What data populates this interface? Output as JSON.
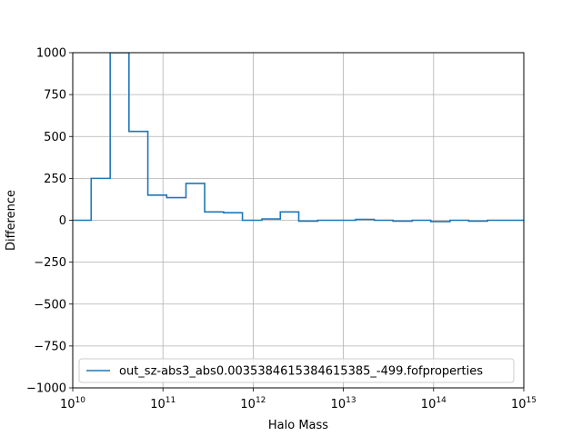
{
  "chart_data": {
    "type": "line",
    "subtype": "step",
    "title": "",
    "xlabel": "Halo Mass",
    "ylabel": "Difference",
    "xscale": "log",
    "xlim": [
      10000000000.0,
      1000000000000000.0
    ],
    "ylim": [
      -1000,
      1000
    ],
    "grid": true,
    "legend_position": "lower-left",
    "x_ticks": [
      {
        "value": 10000000000.0,
        "base": "10",
        "exp": "10"
      },
      {
        "value": 100000000000.0,
        "base": "10",
        "exp": "11"
      },
      {
        "value": 1000000000000.0,
        "base": "10",
        "exp": "12"
      },
      {
        "value": 10000000000000.0,
        "base": "10",
        "exp": "13"
      },
      {
        "value": 100000000000000.0,
        "base": "10",
        "exp": "14"
      },
      {
        "value": 1000000000000000.0,
        "base": "10",
        "exp": "15"
      }
    ],
    "y_ticks": [
      {
        "value": 1000,
        "label": "1000"
      },
      {
        "value": 750,
        "label": "750"
      },
      {
        "value": 500,
        "label": "500"
      },
      {
        "value": 250,
        "label": "250"
      },
      {
        "value": 0,
        "label": "0"
      },
      {
        "value": -250,
        "label": "−250"
      },
      {
        "value": -500,
        "label": "−500"
      },
      {
        "value": -750,
        "label": "−750"
      },
      {
        "value": -1000,
        "label": "−1000"
      }
    ],
    "series": [
      {
        "name": "out_sz-abs3_abs0.0035384615384615385_-499.fofproperties",
        "color": "#1f77b4",
        "edges": [
          10000000000.0,
          16000000000.0,
          26000000000.0,
          42000000000.0,
          68000000000.0,
          110000000000.0,
          180000000000.0,
          290000000000.0,
          470000000000.0,
          760000000000.0,
          1250000000000.0,
          2000000000000.0,
          3200000000000.0,
          5200000000000.0,
          8400000000000.0,
          13700000000000.0,
          22000000000000.0,
          35500000000000.0,
          58000000000000.0,
          93000000000000.0,
          152000000000000.0,
          245000000000000.0,
          395000000000000.0,
          640000000000000.0,
          1000000000000000.0
        ],
        "values": [
          0,
          250,
          1000,
          530,
          150,
          135,
          220,
          50,
          45,
          0,
          8,
          50,
          -5,
          0,
          0,
          5,
          0,
          -5,
          0,
          -8,
          0,
          -5,
          0,
          0
        ]
      }
    ]
  }
}
